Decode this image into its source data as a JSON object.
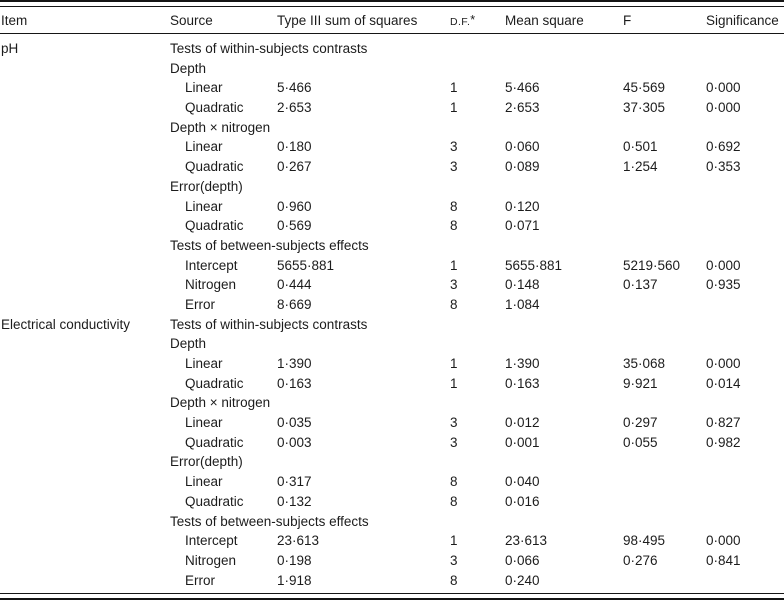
{
  "header": {
    "item": "Item",
    "source": "Source",
    "type3ss": "Type III sum of squares",
    "df": "D.F.",
    "df_footnote_marker": "*",
    "mean_square": "Mean square",
    "f": "F",
    "significance": "Significance"
  },
  "table": {
    "rows": [
      {
        "item": "pH",
        "source": "Tests of within-subjects contrasts",
        "indent": 0,
        "ss": "",
        "df": "",
        "ms": "",
        "f": "",
        "sig": ""
      },
      {
        "item": "",
        "source": "Depth",
        "indent": 0,
        "ss": "",
        "df": "",
        "ms": "",
        "f": "",
        "sig": ""
      },
      {
        "item": "",
        "source": "Linear",
        "indent": 1,
        "ss": "5·466",
        "df": "1",
        "ms": "5·466",
        "f": "45·569",
        "sig": "0·000"
      },
      {
        "item": "",
        "source": "Quadratic",
        "indent": 1,
        "ss": "2·653",
        "df": "1",
        "ms": "2·653",
        "f": "37·305",
        "sig": "0·000"
      },
      {
        "item": "",
        "source": "Depth × nitrogen",
        "indent": 0,
        "ss": "",
        "df": "",
        "ms": "",
        "f": "",
        "sig": ""
      },
      {
        "item": "",
        "source": "Linear",
        "indent": 1,
        "ss": "0·180",
        "df": "3",
        "ms": "0·060",
        "f": "0·501",
        "sig": "0·692"
      },
      {
        "item": "",
        "source": "Quadratic",
        "indent": 1,
        "ss": "0·267",
        "df": "3",
        "ms": "0·089",
        "f": "1·254",
        "sig": "0·353"
      },
      {
        "item": "",
        "source": "Error(depth)",
        "indent": 0,
        "ss": "",
        "df": "",
        "ms": "",
        "f": "",
        "sig": ""
      },
      {
        "item": "",
        "source": "Linear",
        "indent": 1,
        "ss": "0·960",
        "df": "8",
        "ms": "0·120",
        "f": "",
        "sig": ""
      },
      {
        "item": "",
        "source": "Quadratic",
        "indent": 1,
        "ss": "0·569",
        "df": "8",
        "ms": "0·071",
        "f": "",
        "sig": ""
      },
      {
        "item": "",
        "source": "Tests of between-subjects effects",
        "indent": 0,
        "ss": "",
        "df": "",
        "ms": "",
        "f": "",
        "sig": ""
      },
      {
        "item": "",
        "source": "Intercept",
        "indent": 1,
        "ss": "5655·881",
        "df": "1",
        "ms": "5655·881",
        "f": "5219·560",
        "sig": "0·000"
      },
      {
        "item": "",
        "source": "Nitrogen",
        "indent": 1,
        "ss": "0·444",
        "df": "3",
        "ms": "0·148",
        "f": "0·137",
        "sig": "0·935"
      },
      {
        "item": "",
        "source": "Error",
        "indent": 1,
        "ss": "8·669",
        "df": "8",
        "ms": "1·084",
        "f": "",
        "sig": ""
      },
      {
        "item": "Electrical conductivity",
        "source": "Tests of within-subjects contrasts",
        "indent": 0,
        "ss": "",
        "df": "",
        "ms": "",
        "f": "",
        "sig": ""
      },
      {
        "item": "",
        "source": "Depth",
        "indent": 0,
        "ss": "",
        "df": "",
        "ms": "",
        "f": "",
        "sig": ""
      },
      {
        "item": "",
        "source": "Linear",
        "indent": 1,
        "ss": "1·390",
        "df": "1",
        "ms": "1·390",
        "f": "35·068",
        "sig": "0·000"
      },
      {
        "item": "",
        "source": "Quadratic",
        "indent": 1,
        "ss": "0·163",
        "df": "1",
        "ms": "0·163",
        "f": "9·921",
        "sig": "0·014"
      },
      {
        "item": "",
        "source": "Depth × nitrogen",
        "indent": 0,
        "ss": "",
        "df": "",
        "ms": "",
        "f": "",
        "sig": ""
      },
      {
        "item": "",
        "source": "Linear",
        "indent": 1,
        "ss": "0·035",
        "df": "3",
        "ms": "0·012",
        "f": "0·297",
        "sig": "0·827"
      },
      {
        "item": "",
        "source": "Quadratic",
        "indent": 1,
        "ss": "0·003",
        "df": "3",
        "ms": "0·001",
        "f": "0·055",
        "sig": "0·982"
      },
      {
        "item": "",
        "source": "Error(depth)",
        "indent": 0,
        "ss": "",
        "df": "",
        "ms": "",
        "f": "",
        "sig": ""
      },
      {
        "item": "",
        "source": "Linear",
        "indent": 1,
        "ss": "0·317",
        "df": "8",
        "ms": "0·040",
        "f": "",
        "sig": ""
      },
      {
        "item": "",
        "source": "Quadratic",
        "indent": 1,
        "ss": "0·132",
        "df": "8",
        "ms": "0·016",
        "f": "",
        "sig": ""
      },
      {
        "item": "",
        "source": "Tests of between-subjects effects",
        "indent": 0,
        "ss": "",
        "df": "",
        "ms": "",
        "f": "",
        "sig": ""
      },
      {
        "item": "",
        "source": "Intercept",
        "indent": 1,
        "ss": "23·613",
        "df": "1",
        "ms": "23·613",
        "f": "98·495",
        "sig": "0·000"
      },
      {
        "item": "",
        "source": "Nitrogen",
        "indent": 1,
        "ss": "0·198",
        "df": "3",
        "ms": "0·066",
        "f": "0·276",
        "sig": "0·841"
      },
      {
        "item": "",
        "source": "Error",
        "indent": 1,
        "ss": "1·918",
        "df": "8",
        "ms": "0·240",
        "f": "",
        "sig": ""
      }
    ]
  }
}
